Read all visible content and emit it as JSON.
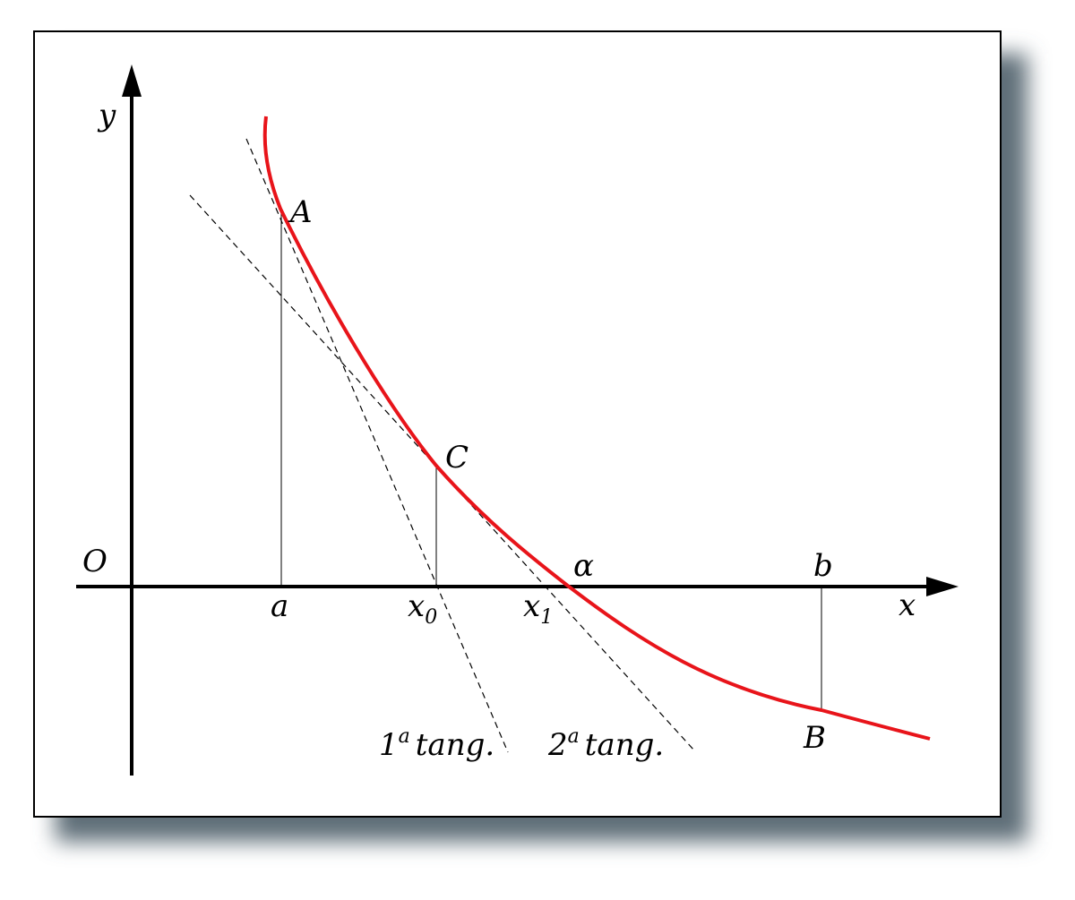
{
  "axes": {
    "y": "y",
    "x": "x",
    "origin": "O"
  },
  "points": {
    "A": "A",
    "C": "C",
    "B": "B"
  },
  "x_labels": {
    "a": "a",
    "x0": {
      "base": "x",
      "sub": "0"
    },
    "x1": {
      "base": "x",
      "sub": "1"
    },
    "alpha": "α",
    "b": "b"
  },
  "tangents": [
    {
      "num": "1",
      "sup": "a",
      "text": "tang."
    },
    {
      "num": "2",
      "sup": "a",
      "text": "tang."
    }
  ]
}
